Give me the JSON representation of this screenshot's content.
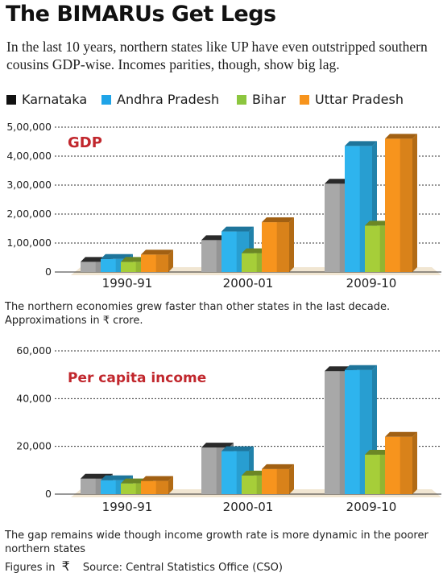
{
  "title": "The BIMARUs Get Legs",
  "subtitle": "In the last 10 years, northern states like UP have even outstripped southern cousins GDP-wise. Incomes parities, though, show big lag.",
  "legend": [
    {
      "label": "Karnataka",
      "color": "#111111"
    },
    {
      "label": "Andhra Pradesh",
      "color": "#1fa4e8"
    },
    {
      "label": "Bihar",
      "color": "#8cc63f"
    },
    {
      "label": "Uttar Pradesh",
      "color": "#f7941d"
    }
  ],
  "caption1": "The northern economies grew faster than other states in the last decade. Approximations in ₹ crore.",
  "caption2": "The gap remains wide though income growth rate is more dynamic in the poorer northern states",
  "footer": {
    "figures_label": "Figures in",
    "rupee_symbol": "₹",
    "source": "Source: Central Statistics Office (CSO)"
  },
  "chart_data": [
    {
      "type": "bar",
      "title": "GDP",
      "categories": [
        "1990-91",
        "2000-01",
        "2009-10"
      ],
      "series": [
        {
          "name": "Karnataka",
          "values": [
            35000,
            110000,
            305000
          ],
          "color": "#a8a8a8"
        },
        {
          "name": "Andhra Pradesh",
          "values": [
            45000,
            140000,
            435000
          ],
          "color": "#2eb4ee"
        },
        {
          "name": "Bihar",
          "values": [
            35000,
            65000,
            160000
          ],
          "color": "#a6ce39"
        },
        {
          "name": "Uttar Pradesh",
          "values": [
            60000,
            172000,
            460000
          ],
          "color": "#f7941d"
        }
      ],
      "yticks": [
        0,
        100000,
        200000,
        300000,
        400000,
        500000
      ],
      "ytick_labels": [
        "0",
        "1,00,000",
        "2,00,000",
        "3,00,000",
        "4,00,000",
        "5,00,000"
      ],
      "ylim": [
        0,
        500000
      ],
      "grid": true,
      "unit": "₹ crore"
    },
    {
      "type": "bar",
      "title": "Per capita income",
      "categories": [
        "1990-91",
        "2000-01",
        "2009-10"
      ],
      "series": [
        {
          "name": "Karnataka",
          "values": [
            6500,
            19500,
            51500
          ],
          "color": "#a8a8a8"
        },
        {
          "name": "Andhra Pradesh",
          "values": [
            5800,
            18000,
            52000
          ],
          "color": "#2eb4ee"
        },
        {
          "name": "Bihar",
          "values": [
            4500,
            7800,
            16500
          ],
          "color": "#a6ce39"
        },
        {
          "name": "Uttar Pradesh",
          "values": [
            5500,
            10500,
            24000
          ],
          "color": "#f7941d"
        }
      ],
      "yticks": [
        0,
        20000,
        40000,
        60000
      ],
      "ytick_labels": [
        "0",
        "20,000",
        "40,000",
        "60,000"
      ],
      "ylim": [
        0,
        60000
      ],
      "grid": true,
      "unit": "₹"
    }
  ]
}
